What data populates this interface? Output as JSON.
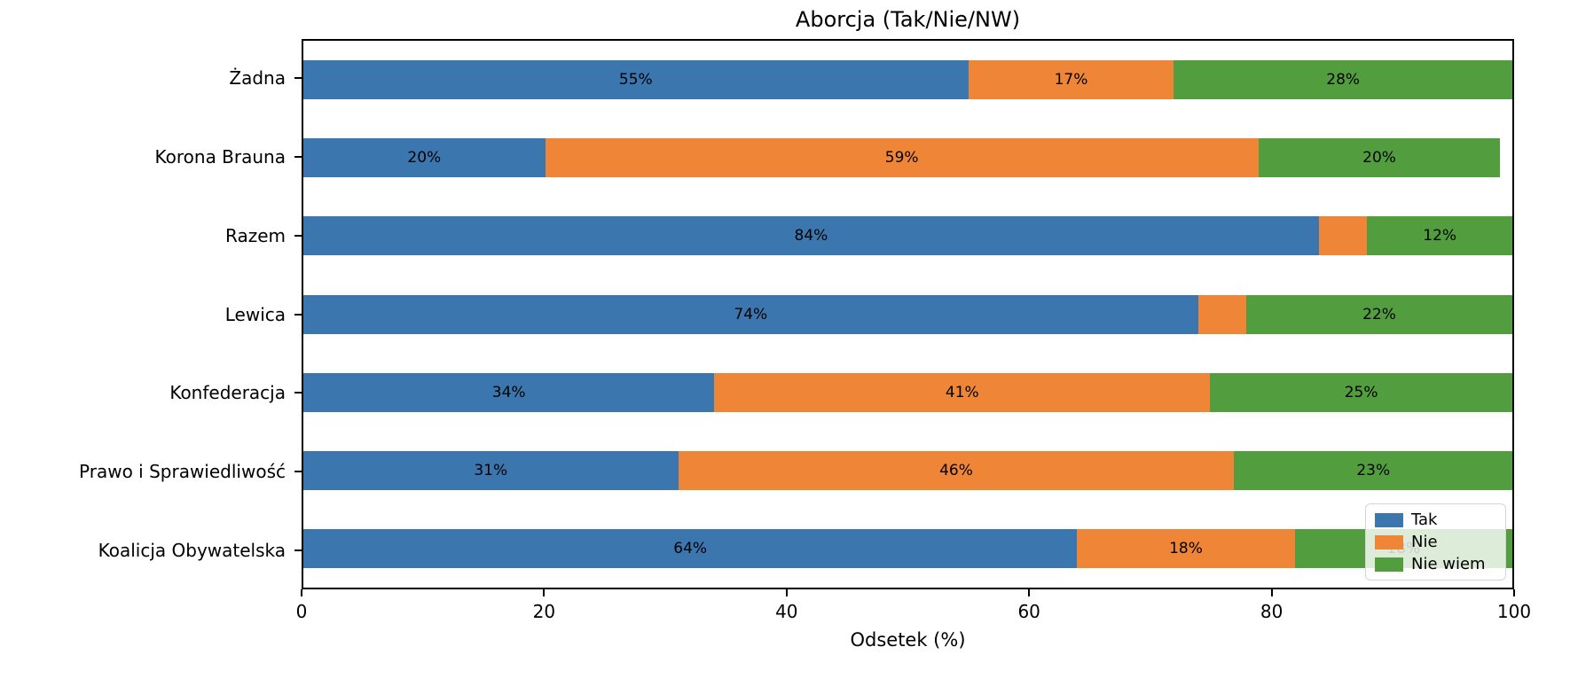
{
  "chart_data": {
    "type": "bar",
    "orientation": "horizontal",
    "stacked": true,
    "title": "Aborcja (Tak/Nie/NW)",
    "xlabel": "Odsetek (%)",
    "ylabel": "",
    "xlim": [
      0,
      100
    ],
    "xticks": [
      "0",
      "20",
      "40",
      "60",
      "80",
      "100"
    ],
    "xtick_values": [
      0,
      20,
      40,
      60,
      80,
      100
    ],
    "grid": false,
    "categories": [
      "Żadna",
      "Korona Brauna",
      "Razem",
      "Lewica",
      "Konfederacja",
      "Prawo i Sprawiedliwość",
      "Koalicja Obywatelska"
    ],
    "series": [
      {
        "name": "Tak",
        "color": "#3B76AF",
        "values": [
          55,
          20,
          84,
          74,
          34,
          31,
          64
        ],
        "labels": [
          "55%",
          "20%",
          "84%",
          "74%",
          "34%",
          "31%",
          "64%"
        ]
      },
      {
        "name": "Nie",
        "color": "#EE8537",
        "values": [
          17,
          59,
          4,
          4,
          41,
          46,
          18
        ],
        "labels": [
          "17%",
          "59%",
          "",
          "",
          "41%",
          "46%",
          "18%"
        ]
      },
      {
        "name": "Nie wiem",
        "color": "#529E3F",
        "values": [
          28,
          20,
          12,
          22,
          25,
          23,
          18
        ],
        "labels": [
          "28%",
          "20%",
          "12%",
          "22%",
          "25%",
          "23%",
          "18%"
        ]
      }
    ],
    "legend": {
      "position": "lower right",
      "entries": [
        "Tak",
        "Nie",
        "Nie wiem"
      ]
    }
  }
}
